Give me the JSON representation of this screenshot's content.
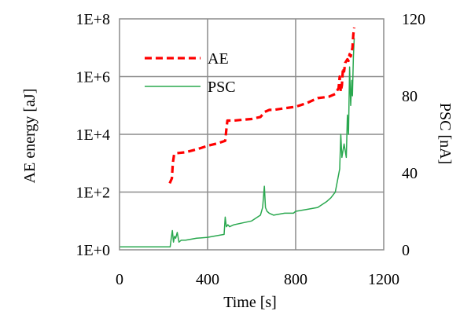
{
  "chart_data": {
    "type": "line",
    "title": "",
    "xlabel": "Time [s]",
    "ylabel_left": "AE energy [aJ]",
    "ylabel_right": "PSC [nA]",
    "xlim": [
      0,
      1200
    ],
    "xticks": [
      "0",
      "400",
      "800",
      "1200"
    ],
    "y_left": {
      "scale": "log",
      "range": [
        1,
        100000000
      ],
      "ticks": [
        "1E+0",
        "1E+2",
        "1E+4",
        "1E+6",
        "1E+8"
      ]
    },
    "y_right": {
      "scale": "linear",
      "range": [
        0,
        120
      ],
      "ticks": [
        "0",
        "40",
        "80",
        "120"
      ]
    },
    "grid": true,
    "legend": {
      "position": "upper-left",
      "entries": [
        "AE",
        "PSC"
      ]
    },
    "series": [
      {
        "name": "AE",
        "axis": "left",
        "style": "dashed",
        "color": "#ff0000",
        "x": [
          228,
          238,
          242,
          248,
          255,
          300,
          350,
          400,
          450,
          480,
          485,
          490,
          520,
          560,
          600,
          640,
          660,
          680,
          700,
          750,
          800,
          850,
          900,
          950,
          980,
          995,
          1000,
          1005,
          1010,
          1015,
          1020,
          1025,
          1035,
          1040,
          1045,
          1050,
          1055,
          1058,
          1062,
          1066
        ],
        "y": [
          200,
          300,
          1000,
          2000,
          2200,
          2400,
          3000,
          4000,
          5000,
          6000,
          14000,
          30000,
          30000,
          32000,
          34000,
          40000,
          60000,
          70000,
          70000,
          80000,
          90000,
          120000,
          180000,
          200000,
          250000,
          400000,
          1000000,
          300000,
          500000,
          2000000,
          1500000,
          3000000,
          4000000,
          3500000,
          6000000,
          5000000,
          8000000,
          10000000,
          30000000,
          50000000
        ]
      },
      {
        "name": "PSC",
        "axis": "right",
        "style": "solid",
        "color": "#2aa84f",
        "x": [
          0,
          230,
          235,
          240,
          245,
          250,
          255,
          262,
          270,
          280,
          300,
          350,
          400,
          450,
          475,
          480,
          485,
          492,
          500,
          520,
          560,
          600,
          640,
          650,
          658,
          663,
          670,
          680,
          700,
          750,
          780,
          790,
          800,
          850,
          900,
          940,
          960,
          980,
          990,
          1000,
          1005,
          1010,
          1020,
          1030,
          1035,
          1040,
          1045,
          1050,
          1055,
          1058,
          1062,
          1066
        ],
        "y": [
          1.5,
          1.5,
          6,
          10,
          4,
          7,
          6,
          9,
          4,
          5,
          5,
          6,
          6.5,
          7.5,
          8,
          17,
          12,
          13,
          12,
          13,
          14,
          15,
          18,
          22,
          33,
          22,
          20,
          19,
          18,
          19,
          19,
          19,
          20,
          21,
          22,
          25,
          27,
          30,
          36,
          42,
          60,
          48,
          55,
          48,
          70,
          60,
          95,
          75,
          88,
          80,
          100,
          110
        ]
      }
    ]
  }
}
